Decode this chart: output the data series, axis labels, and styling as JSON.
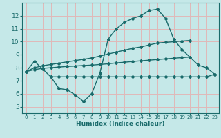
{
  "xlabel": "Humidex (Indice chaleur)",
  "ylabel": "",
  "xlim": [
    -0.5,
    23.5
  ],
  "ylim": [
    4.5,
    13.0
  ],
  "yticks": [
    5,
    6,
    7,
    8,
    9,
    10,
    11,
    12
  ],
  "xticks": [
    0,
    1,
    2,
    3,
    4,
    5,
    6,
    7,
    8,
    9,
    10,
    11,
    12,
    13,
    14,
    15,
    16,
    17,
    18,
    19,
    20,
    21,
    22,
    23
  ],
  "bg_color": "#c5e8e8",
  "grid_color": "#e0b8b8",
  "line_color": "#1a6b6b",
  "line1_x": [
    0,
    1,
    2,
    3,
    4,
    5,
    6,
    7,
    8,
    9,
    10,
    11,
    12,
    13,
    14,
    15,
    16,
    17,
    18,
    19,
    21,
    22,
    23
  ],
  "line1_y": [
    7.7,
    8.5,
    7.9,
    7.3,
    6.4,
    6.3,
    5.9,
    5.4,
    6.0,
    7.6,
    10.2,
    11.0,
    11.5,
    11.8,
    12.0,
    12.4,
    12.5,
    11.8,
    10.2,
    9.4,
    8.2,
    8.0,
    7.5
  ],
  "line2_x": [
    0,
    1,
    2,
    3,
    4,
    5,
    6,
    7,
    8,
    9,
    10,
    11,
    12,
    13,
    14,
    15,
    16,
    17,
    18,
    19,
    20
  ],
  "line2_y": [
    7.7,
    8.0,
    8.15,
    8.25,
    8.35,
    8.45,
    8.55,
    8.65,
    8.75,
    8.9,
    9.05,
    9.2,
    9.35,
    9.5,
    9.6,
    9.75,
    9.9,
    9.95,
    10.0,
    10.05,
    10.1
  ],
  "line3_x": [
    0,
    1,
    2,
    3,
    4,
    5,
    6,
    7,
    8,
    9,
    10,
    11,
    12,
    13,
    14,
    15,
    16,
    17,
    18,
    19,
    20
  ],
  "line3_y": [
    7.7,
    7.85,
    7.95,
    8.0,
    8.05,
    8.1,
    8.13,
    8.17,
    8.2,
    8.25,
    8.3,
    8.37,
    8.42,
    8.48,
    8.53,
    8.58,
    8.63,
    8.68,
    8.73,
    8.78,
    8.82
  ],
  "line4_x": [
    3,
    4,
    5,
    6,
    7,
    8,
    9,
    10,
    11,
    12,
    13,
    14,
    15,
    16,
    17,
    18,
    19,
    20,
    21,
    22,
    23
  ],
  "line4_y": [
    7.3,
    7.3,
    7.3,
    7.3,
    7.3,
    7.3,
    7.3,
    7.3,
    7.3,
    7.3,
    7.3,
    7.3,
    7.3,
    7.3,
    7.3,
    7.3,
    7.3,
    7.3,
    7.3,
    7.3,
    7.5
  ]
}
